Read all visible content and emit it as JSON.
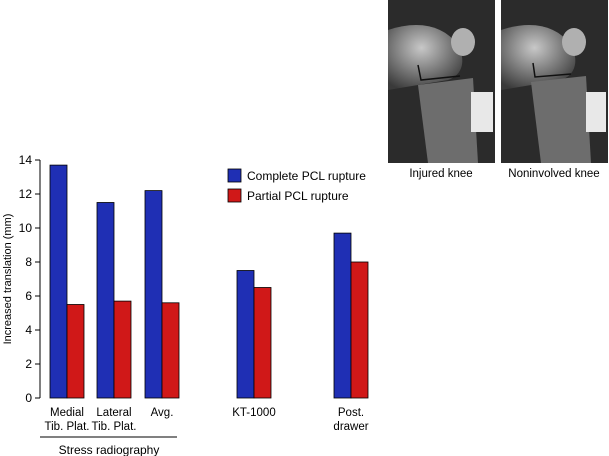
{
  "chart_data": {
    "type": "bar",
    "ylabel": "Increased translation (mm)",
    "ylim": [
      0,
      14
    ],
    "yticks": [
      0,
      2,
      4,
      6,
      8,
      10,
      12,
      14
    ],
    "categories": [
      {
        "lines": [
          "Medial",
          "Tib. Plat."
        ]
      },
      {
        "lines": [
          "Lateral",
          "Tib. Plat."
        ]
      },
      {
        "lines": [
          "Avg."
        ]
      },
      {
        "lines": [
          "KT-1000"
        ]
      },
      {
        "lines": [
          "Post.",
          "drawer"
        ]
      }
    ],
    "group_label": {
      "text": "Stress radiography",
      "spans": [
        0,
        2
      ]
    },
    "series": [
      {
        "name": "Complete PCL rupture",
        "color": "#1f2fb4",
        "values": [
          13.7,
          11.5,
          12.2,
          7.5,
          9.7
        ]
      },
      {
        "name": "Partial PCL rupture",
        "color": "#d01818",
        "values": [
          5.5,
          5.7,
          5.6,
          6.5,
          8.0
        ]
      }
    ],
    "legend_position": "top-right",
    "grid": false
  },
  "images": [
    {
      "caption": "Injured knee"
    },
    {
      "caption": "Noninvolved knee"
    }
  ]
}
